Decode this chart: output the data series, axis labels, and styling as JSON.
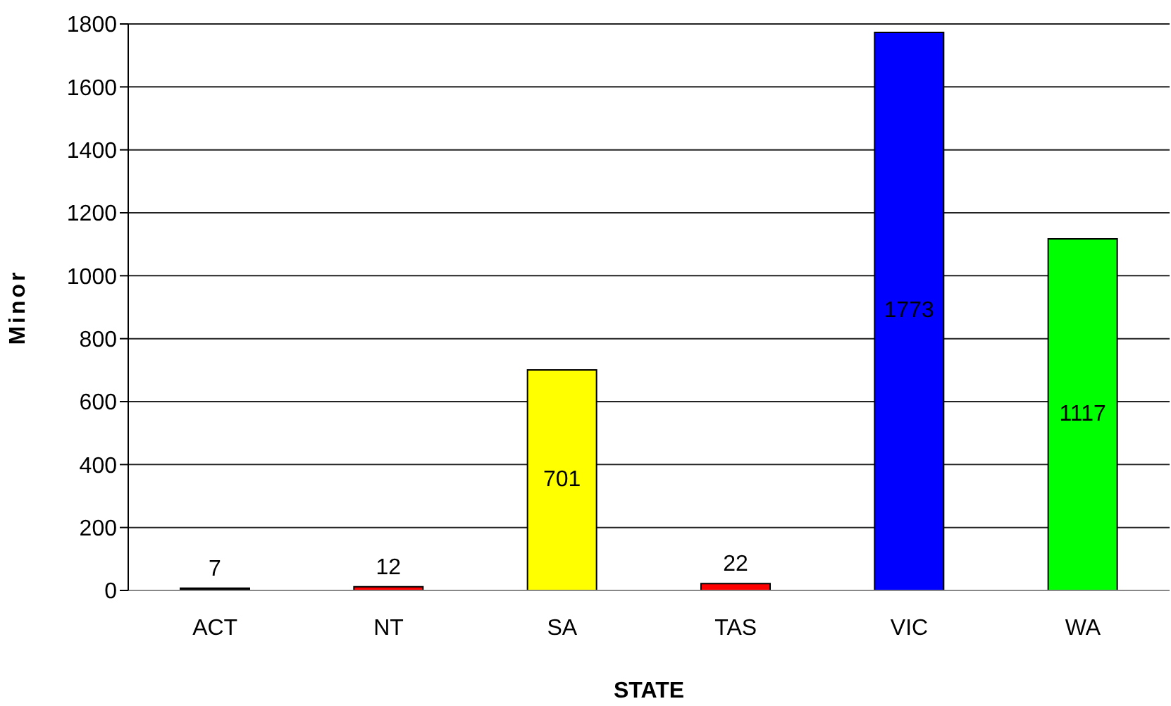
{
  "chart_data": {
    "type": "bar",
    "xlabel": "STATE",
    "ylabel": "Minor",
    "categories": [
      "ACT",
      "NT",
      "SA",
      "TAS",
      "VIC",
      "WA"
    ],
    "values": [
      7,
      12,
      701,
      22,
      1773,
      1117
    ],
    "colors": [
      "#000000",
      "#ff0000",
      "#ffff00",
      "#ff0000",
      "#0000ff",
      "#00ff00"
    ],
    "ylim": [
      0,
      1800
    ],
    "yticks": [
      0,
      200,
      400,
      600,
      800,
      1000,
      1200,
      1400,
      1600,
      1800
    ],
    "grid": "y",
    "data_labels": true,
    "legend": false
  }
}
